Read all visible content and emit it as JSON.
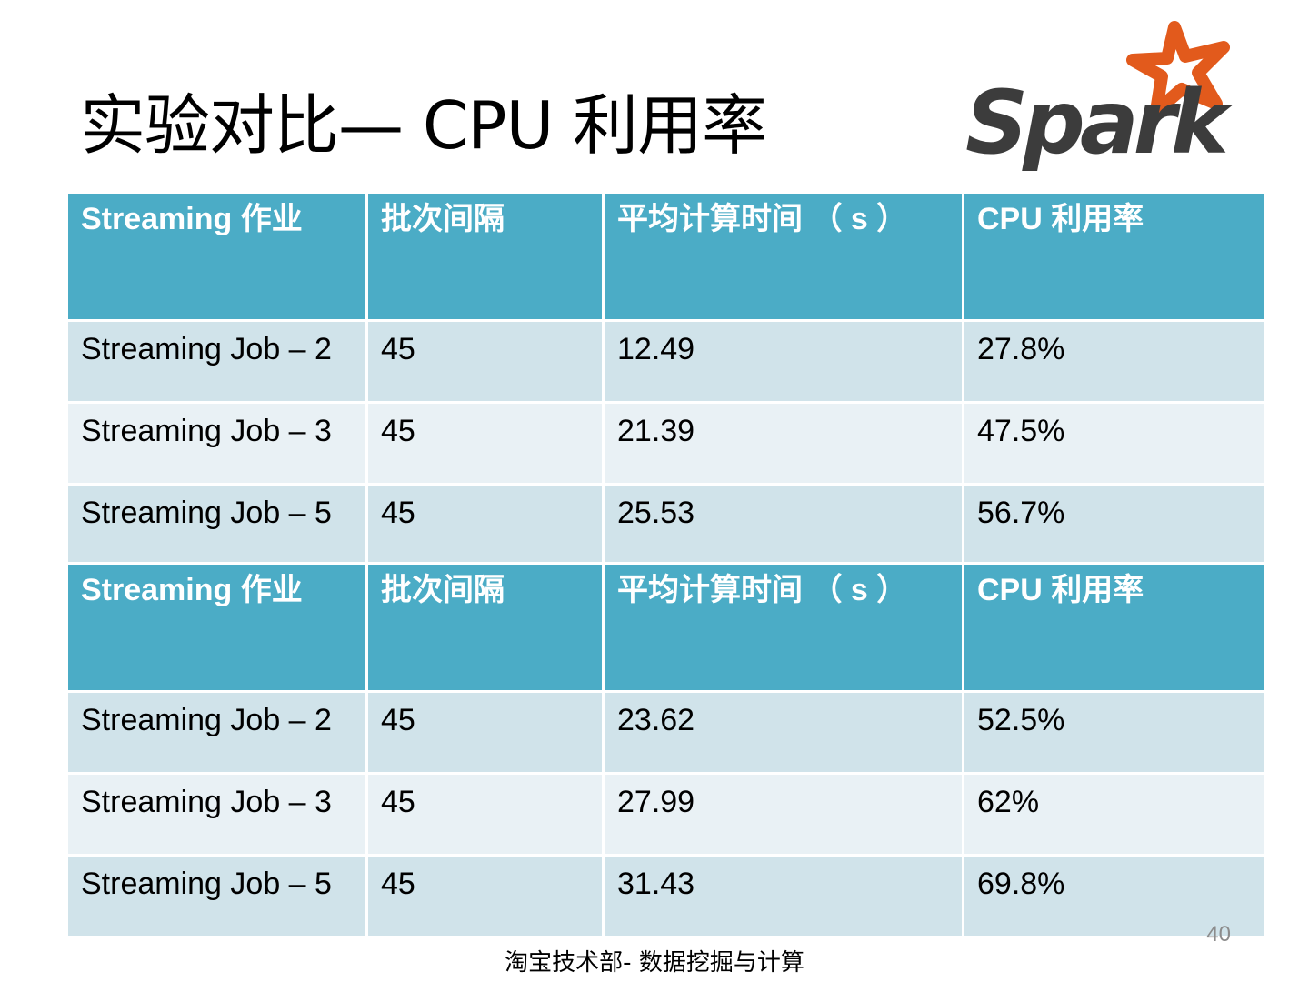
{
  "slide": {
    "title": "实验对比— CPU 利用率",
    "logo_text": "Spark",
    "page_number": "40",
    "footer": "淘宝技术部- 数据挖掘与计算"
  },
  "colors": {
    "header_bg": "#4bacc6",
    "row_odd_bg": "#d0e3ea",
    "row_even_bg": "#e9f1f5",
    "logo_text": "#3c3c3c",
    "logo_star": "#e25a1c"
  },
  "tables": [
    {
      "headers": [
        "Streaming  作业",
        "批次间隔",
        "平均计算时间 （ s ）",
        "CPU 利用率"
      ],
      "rows": [
        [
          "Streaming Job – 2",
          "45",
          "12.49",
          "27.8%"
        ],
        [
          "Streaming Job – 3",
          "45",
          "21.39",
          "47.5%"
        ],
        [
          "Streaming Job – 5",
          "45",
          "25.53",
          "56.7%"
        ]
      ]
    },
    {
      "headers": [
        "Streaming  作业",
        "批次间隔",
        "平均计算时间 （ s ）",
        "CPU 利用率"
      ],
      "rows": [
        [
          "Streaming Job – 2",
          "45",
          "23.62",
          "52.5%"
        ],
        [
          "Streaming Job – 3",
          "45",
          "27.99",
          "62%"
        ],
        [
          "Streaming Job – 5",
          "45",
          "31.43",
          "69.8%"
        ]
      ]
    }
  ]
}
